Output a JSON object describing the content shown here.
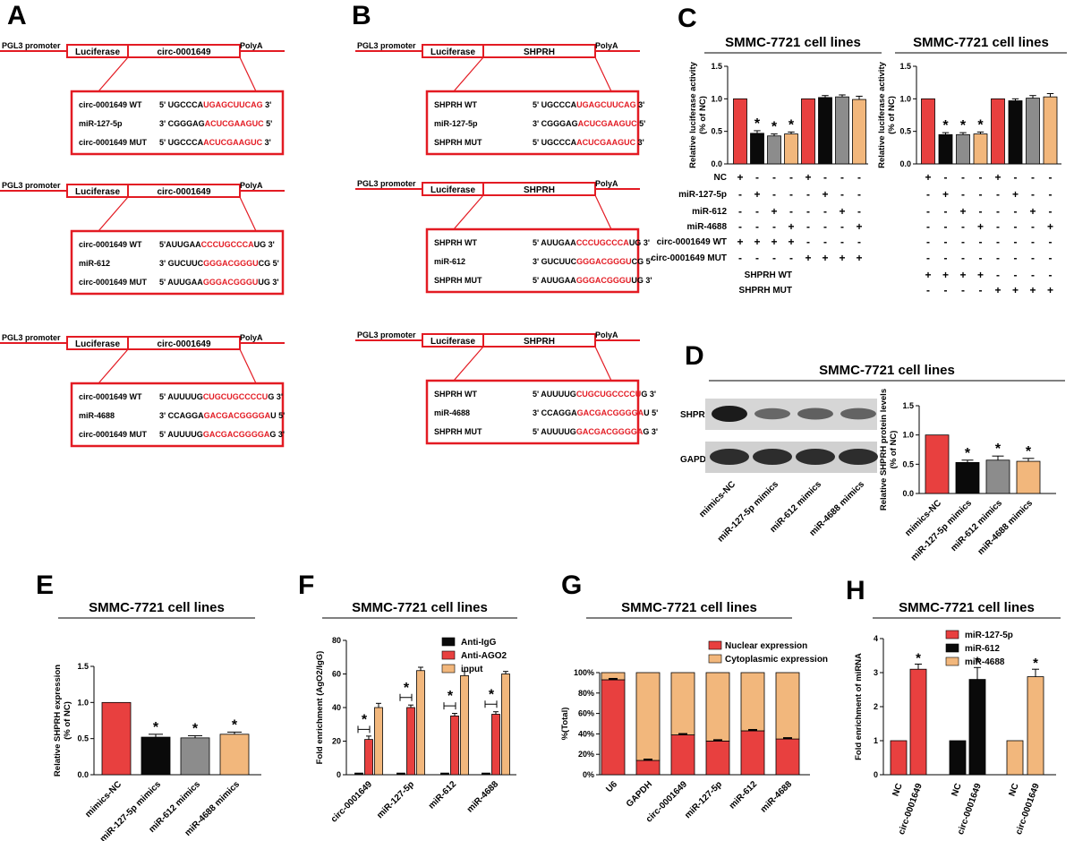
{
  "colors": {
    "red": "#e8403f",
    "black": "#0a0a0a",
    "gray": "#8c8c8c",
    "tan": "#f2b77c",
    "box": "#e31b23",
    "seq": "#e31b23"
  },
  "panels": {
    "A": {
      "letter": "A",
      "constructs": [
        {
          "promoter": "PGL3 promoter",
          "reporter": "Luciferase",
          "insert": "circ-0001649",
          "polya": "PolyA",
          "rows": [
            {
              "name": "circ-0001649 WT",
              "pre": "5' UGCCCA",
              "hl": "UGAGCUUCAG",
              "post": " 3'"
            },
            {
              "name": "miR-127-5p",
              "pre": "3' CGGGAG",
              "hl": "ACUCGAAGUC",
              "post": " 5'"
            },
            {
              "name": "circ-0001649 MUT",
              "pre": "5' UGCCCA",
              "hl": "ACUCGAAGUC",
              "post": " 3'"
            }
          ]
        },
        {
          "promoter": "PGL3 promoter",
          "reporter": "Luciferase",
          "insert": "circ-0001649",
          "polya": "PolyA",
          "rows": [
            {
              "name": "circ-0001649 WT",
              "pre": "5'AUUGAA",
              "hl": "CCCUGCCCA",
              "post": "UG 3'"
            },
            {
              "name": "miR-612",
              "pre": "3' GUCUUC",
              "hl": "GGGACGGGU",
              "post": "CG 5'"
            },
            {
              "name": "circ-0001649 MUT",
              "pre": "5' AUUGAA",
              "hl": "GGGACGGGU",
              "post": "UG 3'"
            }
          ]
        },
        {
          "promoter": "PGL3 promoter",
          "reporter": "Luciferase",
          "insert": "circ-0001649",
          "polya": "PolyA",
          "rows": [
            {
              "name": "circ-0001649 WT",
              "pre": "5' AUUUUG",
              "hl": "CUGCUGCCCCU",
              "post": "G 3'"
            },
            {
              "name": "miR-4688",
              "pre": "3' CCAGGA",
              "hl": "GACGACGGGGA",
              "post": "U 5'"
            },
            {
              "name": "circ-0001649 MUT",
              "pre": "5' AUUUUG",
              "hl": "GACGACGGGGA",
              "post": "G 3'"
            }
          ]
        }
      ]
    },
    "B": {
      "letter": "B",
      "constructs": [
        {
          "promoter": "PGL3 promoter",
          "reporter": "Luciferase",
          "insert": "SHPRH",
          "polya": "PolyA",
          "rows": [
            {
              "name": "SHPRH WT",
              "pre": "5' UGCCCA",
              "hl": "UGAGCUUCAG",
              "post": " 3'"
            },
            {
              "name": "miR-127-5p",
              "pre": "3' CGGGAG",
              "hl": "ACUCGAAGUC",
              "post": " 5'"
            },
            {
              "name": "SHPRH MUT",
              "pre": "5' UGCCCA",
              "hl": "ACUCGAAGUC",
              "post": " 3'"
            }
          ]
        },
        {
          "promoter": "PGL3 promoter",
          "reporter": "Luciferase",
          "insert": "SHPRH",
          "polya": "PolyA",
          "rows": [
            {
              "name": "SHPRH WT",
              "pre": "5' AUUGAA",
              "hl": "CCCUGCCCA",
              "post": "UG 3'"
            },
            {
              "name": "miR-612",
              "pre": "3' GUCUUC",
              "hl": "GGGACGGGU",
              "post": "CG 5'"
            },
            {
              "name": "SHPRH MUT",
              "pre": "5' AUUGAA",
              "hl": "GGGACGGGU",
              "post": "UG 3'"
            }
          ]
        },
        {
          "promoter": "PGL3 promoter",
          "reporter": "Luciferase",
          "insert": "SHPRH",
          "polya": "PolyA",
          "rows": [
            {
              "name": "SHPRH WT",
              "pre": "5' AUUUUG",
              "hl": "CUGCUGCCCCU",
              "post": "G 3'"
            },
            {
              "name": "miR-4688",
              "pre": "3' CCAGGA",
              "hl": "GACGACGGGGA",
              "post": "U 5'"
            },
            {
              "name": "SHPRH MUT",
              "pre": "5' AUUUUG",
              "hl": "GACGACGGGGA",
              "post": "G 3'"
            }
          ]
        }
      ]
    },
    "C": {
      "letter": "C",
      "title_left": "SMMC-7721 cell lines",
      "title_right": "SMMC-7721 cell lines"
    },
    "D": {
      "letter": "D",
      "title": "SMMC-7721 cell lines",
      "blot_labels": [
        "SHPRH",
        "GAPDH"
      ]
    },
    "E": {
      "letter": "E",
      "title": "SMMC-7721 cell lines"
    },
    "F": {
      "letter": "F",
      "title": "SMMC-7721 cell lines"
    },
    "G": {
      "letter": "G",
      "title": "SMMC-7721 cell lines"
    },
    "H": {
      "letter": "H",
      "title": "SMMC-7721 cell lines"
    }
  },
  "chart_data": [
    {
      "id": "C-left",
      "type": "bar",
      "ylabel": "Relative luciferase activity\n(% of NC)",
      "ylim": [
        0,
        1.5
      ],
      "yticks": [
        "0.0",
        "0.5",
        "1.0",
        "1.5"
      ],
      "values": [
        1.0,
        0.47,
        0.43,
        0.46,
        1.0,
        1.02,
        1.03,
        0.99
      ],
      "errors": [
        0,
        0.04,
        0.03,
        0.03,
        0,
        0.03,
        0.03,
        0.05
      ],
      "bar_colors": [
        "red",
        "black",
        "gray",
        "tan",
        "red",
        "black",
        "gray",
        "tan"
      ],
      "significant": [
        false,
        true,
        true,
        true,
        false,
        false,
        false,
        false
      ],
      "condition_rows": [
        {
          "label": "NC",
          "marks": [
            "+",
            "-",
            "-",
            "-",
            "+",
            "-",
            "-",
            "-"
          ]
        },
        {
          "label": "miR-127-5p",
          "marks": [
            "-",
            "+",
            "-",
            "-",
            "-",
            "+",
            "-",
            "-"
          ]
        },
        {
          "label": "miR-612",
          "marks": [
            "-",
            "-",
            "+",
            "-",
            "-",
            "-",
            "+",
            "-"
          ]
        },
        {
          "label": "miR-4688",
          "marks": [
            "-",
            "-",
            "-",
            "+",
            "-",
            "-",
            "-",
            "+"
          ]
        },
        {
          "label": "circ-0001649 WT",
          "marks": [
            "+",
            "+",
            "+",
            "+",
            "-",
            "-",
            "-",
            "-"
          ]
        },
        {
          "label": "circ-0001649 MUT",
          "marks": [
            "-",
            "-",
            "-",
            "-",
            "+",
            "+",
            "+",
            "+"
          ]
        }
      ]
    },
    {
      "id": "C-right",
      "type": "bar",
      "ylabel": "Relative luciferase activity\n(% of NC)",
      "ylim": [
        0,
        1.5
      ],
      "yticks": [
        "0.0",
        "0.5",
        "1.0",
        "1.5"
      ],
      "values": [
        1.0,
        0.45,
        0.45,
        0.46,
        1.0,
        0.97,
        1.01,
        1.03
      ],
      "errors": [
        0,
        0.03,
        0.03,
        0.03,
        0,
        0.03,
        0.04,
        0.05
      ],
      "bar_colors": [
        "red",
        "black",
        "gray",
        "tan",
        "red",
        "black",
        "gray",
        "tan"
      ],
      "significant": [
        false,
        true,
        true,
        true,
        false,
        false,
        false,
        false
      ],
      "condition_rows": [
        {
          "label": "",
          "marks": [
            "+",
            "-",
            "-",
            "-",
            "+",
            "-",
            "-",
            "-"
          ]
        },
        {
          "label": "",
          "marks": [
            "-",
            "+",
            "-",
            "-",
            "-",
            "+",
            "-",
            "-"
          ]
        },
        {
          "label": "",
          "marks": [
            "-",
            "-",
            "+",
            "-",
            "-",
            "-",
            "+",
            "-"
          ]
        },
        {
          "label": "",
          "marks": [
            "-",
            "-",
            "-",
            "+",
            "-",
            "-",
            "-",
            "+"
          ]
        },
        {
          "label": "",
          "marks": [
            "-",
            "-",
            "-",
            "-",
            "-",
            "-",
            "-",
            "-"
          ]
        },
        {
          "label": "",
          "marks": [
            "-",
            "-",
            "-",
            "-",
            "-",
            "-",
            "-",
            "-"
          ]
        },
        {
          "label": "SHPRH WT",
          "marks": [
            "+",
            "+",
            "+",
            "+",
            "-",
            "-",
            "-",
            "-"
          ]
        },
        {
          "label": "SHPRH MUT",
          "marks": [
            "-",
            "-",
            "-",
            "-",
            "+",
            "+",
            "+",
            "+"
          ]
        }
      ]
    },
    {
      "id": "D-bar",
      "type": "bar",
      "ylabel": "Relative SHPRH protein levels\n(% of NC)",
      "ylim": [
        0,
        1.5
      ],
      "yticks": [
        "0.0",
        "0.5",
        "1.0",
        "1.5"
      ],
      "categories": [
        "mimics-NC",
        "miR-127-5p mimics",
        "miR-612 mimics",
        "miR-4688 mimics"
      ],
      "values": [
        1.0,
        0.53,
        0.57,
        0.55
      ],
      "errors": [
        0,
        0.04,
        0.07,
        0.05
      ],
      "bar_colors": [
        "red",
        "black",
        "gray",
        "tan"
      ],
      "significant": [
        false,
        true,
        true,
        true
      ]
    },
    {
      "id": "D-blot",
      "type": "bar",
      "categories": [
        "mimics-NC",
        "miR-127-5p mimics",
        "miR-612 mimics",
        "miR-4688 mimics"
      ],
      "shprh_intensity": [
        1.0,
        0.45,
        0.5,
        0.48
      ],
      "gapdh_intensity": [
        1,
        1,
        1,
        1
      ]
    },
    {
      "id": "E",
      "type": "bar",
      "ylabel": "Relative SHPRH expression\n(% of NC)",
      "ylim": [
        0,
        1.5
      ],
      "yticks": [
        "0.0",
        "0.5",
        "1.0",
        "1.5"
      ],
      "categories": [
        "mimics-NC",
        "miR-127-5p mimics",
        "miR-612 mimics",
        "miR-4688 mimics"
      ],
      "values": [
        1.0,
        0.52,
        0.51,
        0.56
      ],
      "errors": [
        0,
        0.04,
        0.03,
        0.03
      ],
      "bar_colors": [
        "red",
        "black",
        "gray",
        "tan"
      ],
      "significant": [
        false,
        true,
        true,
        true
      ]
    },
    {
      "id": "F",
      "type": "bar",
      "ylabel": "Fold enrichment (AgO2/IgG)",
      "ylim": [
        0,
        80
      ],
      "yticks": [
        "0",
        "20",
        "40",
        "60",
        "80"
      ],
      "categories": [
        "circ-0001649",
        "miR-127-5p",
        "miR-612",
        "miR-4688"
      ],
      "series": [
        {
          "name": "Anti-IgG",
          "color": "black",
          "values": [
            1,
            1,
            1,
            1
          ],
          "errors": [
            0,
            0,
            0,
            0
          ]
        },
        {
          "name": "Anti-AGO2",
          "color": "red",
          "values": [
            21,
            40,
            35,
            36
          ],
          "errors": [
            2,
            1.5,
            1.5,
            1.5
          ]
        },
        {
          "name": "input",
          "color": "tan",
          "values": [
            40,
            62,
            59,
            60
          ],
          "errors": [
            2.5,
            2,
            2.5,
            1.5
          ]
        }
      ]
    },
    {
      "id": "G",
      "type": "bar",
      "ylabel": "%(Total)",
      "ylim": [
        0,
        100
      ],
      "yticks": [
        "0%",
        "20%",
        "40%",
        "60%",
        "80%",
        "100%"
      ],
      "categories": [
        "U6",
        "GAPDH",
        "circ-0001649",
        "miR-127-5p",
        "miR-612",
        "miR-4688"
      ],
      "series": [
        {
          "name": "Nuclear expression",
          "color": "red",
          "values": [
            93,
            14,
            39,
            33,
            43,
            35
          ]
        },
        {
          "name": "Cytoplasmic expression",
          "color": "tan",
          "values": [
            7,
            86,
            61,
            67,
            57,
            65
          ]
        }
      ]
    },
    {
      "id": "H",
      "type": "bar",
      "ylabel": "Fold enrichment of miRNA",
      "ylim": [
        0,
        4
      ],
      "yticks": [
        "0",
        "1",
        "2",
        "3",
        "4"
      ],
      "categories": [
        "NC",
        "circ-0001649",
        "NC",
        "circ-0001649",
        "NC",
        "circ-0001649"
      ],
      "values": [
        1,
        3.1,
        1,
        2.8,
        1,
        2.88
      ],
      "errors": [
        0,
        0.15,
        0,
        0.35,
        0,
        0.22
      ],
      "bar_colors": [
        "red",
        "red",
        "black",
        "black",
        "tan",
        "tan"
      ],
      "significant": [
        false,
        true,
        false,
        true,
        false,
        true
      ],
      "series": [
        {
          "name": "miR-127-5p",
          "color": "red"
        },
        {
          "name": "miR-612",
          "color": "black"
        },
        {
          "name": "miR-4688",
          "color": "tan"
        }
      ]
    }
  ]
}
